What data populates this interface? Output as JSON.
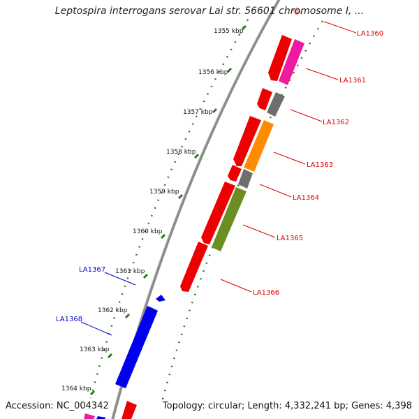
{
  "title": "Leptospira interrogans serovar Lai str. 56601 chromosome I, ...",
  "footer": {
    "accession": "Accession: NC_004342",
    "summary": "Topology: circular; Length: 4,332,241 bp; Genes: 4,398"
  },
  "colors": {
    "backbone": "#8a8a8a",
    "tick": "#2a7a1e",
    "forward_label": "#dd0000",
    "reverse_label": "#0000cc",
    "red": "#ee0000",
    "pink": "#ee1aa0",
    "gray": "#6e6e6e",
    "orange": "#ff8c00",
    "olive": "#6b8e23",
    "blue": "#0000ee"
  },
  "scale_labels": [
    "1355 kbp",
    "1356 kbp",
    "1357 kbp",
    "1358 kbp",
    "1359 kbp",
    "1360 kbp",
    "1361 kbp",
    "1362 kbp",
    "1363 kbp",
    "1364 kbp"
  ],
  "gene_labels": [
    "LA1360",
    "LA1361",
    "LA1362",
    "LA1363",
    "LA1364",
    "LA1365",
    "LA1366",
    "LA1367",
    "LA1368"
  ]
}
